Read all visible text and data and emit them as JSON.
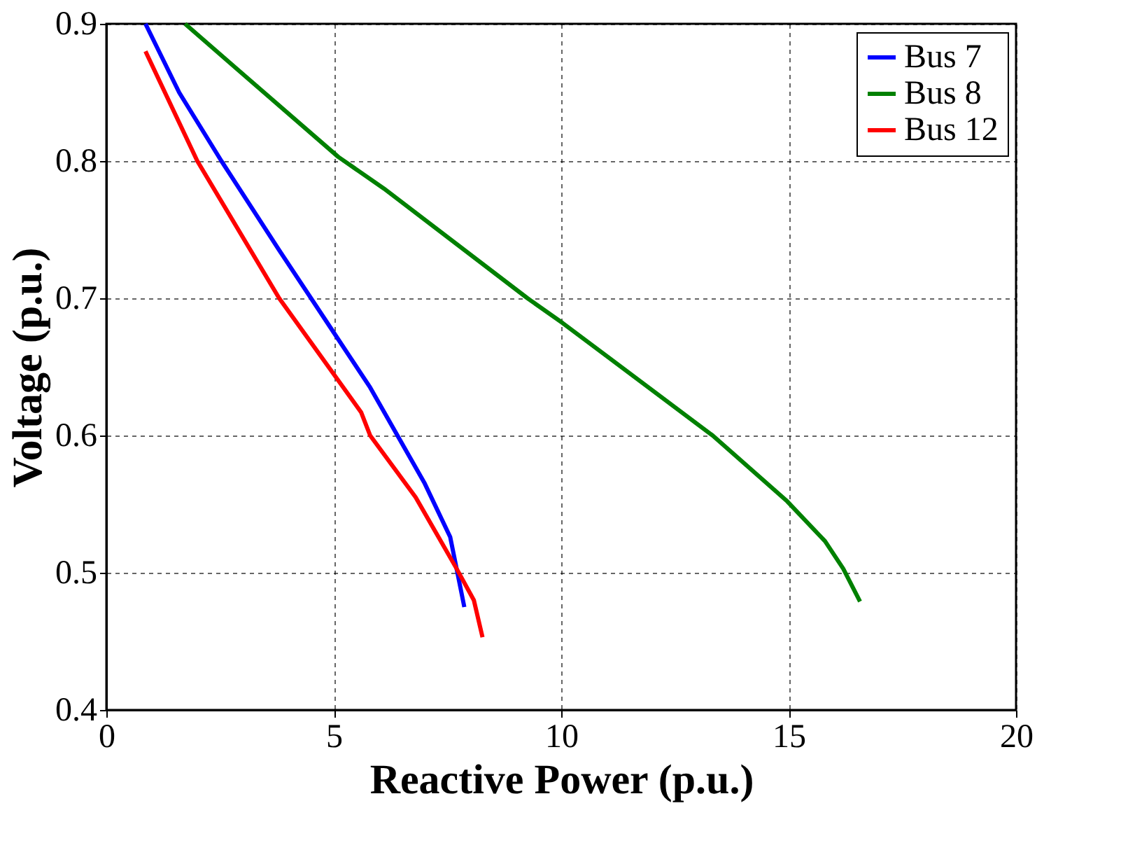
{
  "chart_data": {
    "type": "line",
    "xlabel": "Reactive Power (p.u.)",
    "ylabel": "Voltage (p.u.)",
    "xlim": [
      0,
      20
    ],
    "xticks": [
      0,
      5,
      10,
      15,
      20
    ],
    "ylim": [
      0.4,
      0.9
    ],
    "yticks": [
      0.4,
      0.5,
      0.6,
      0.7,
      0.8,
      0.9
    ],
    "grid": true,
    "legend": "top right",
    "line_style": "solid",
    "marker": "none",
    "series": [
      {
        "name": "Bus 7",
        "color": "#0000ff",
        "x": [
          0.86,
          1.6,
          2.53,
          3.8,
          5.0,
          5.8,
          6.4,
          7.0,
          7.56,
          7.7,
          7.87
        ],
        "values": [
          0.9,
          0.85,
          0.8,
          0.735,
          0.675,
          0.635,
          0.6,
          0.565,
          0.526,
          0.503,
          0.475
        ]
      },
      {
        "name": "Bus 8",
        "color": "#008000",
        "x": [
          1.73,
          2.84,
          5.1,
          6.1,
          9.26,
          10.03,
          13.33,
          14.97,
          15.8,
          16.2,
          16.57
        ],
        "values": [
          0.9,
          0.868,
          0.803,
          0.78,
          0.7,
          0.682,
          0.6,
          0.552,
          0.523,
          0.503,
          0.479
        ]
      },
      {
        "name": "Bus 12",
        "color": "#ff0000",
        "x": [
          0.86,
          2.0,
          3.8,
          5.6,
          5.8,
          6.8,
          7.7,
          8.08,
          8.27
        ],
        "values": [
          0.88,
          0.8,
          0.7,
          0.617,
          0.6,
          0.555,
          0.503,
          0.48,
          0.453
        ]
      }
    ]
  }
}
